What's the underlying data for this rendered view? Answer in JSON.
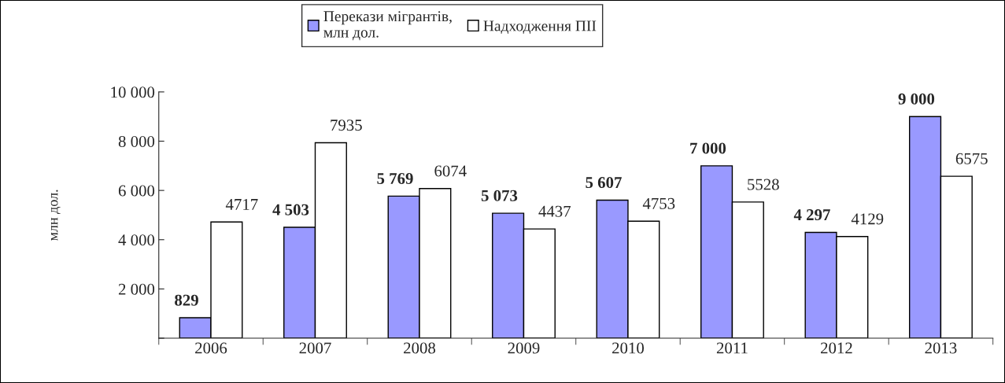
{
  "chart_data": {
    "type": "bar",
    "categories": [
      "2006",
      "2007",
      "2008",
      "2009",
      "2010",
      "2011",
      "2012",
      "2013"
    ],
    "series": [
      {
        "name": "Перекази мігрантів,\nмлн дол.",
        "color": "#9999ff",
        "values": [
          829,
          4503,
          5769,
          5073,
          5607,
          7000,
          4297,
          9000
        ],
        "value_labels": [
          "829",
          "4 503",
          "5 769",
          "5 073",
          "5 607",
          "7 000",
          "4 297",
          "9 000"
        ]
      },
      {
        "name": "Надходження ПІІ",
        "color": "#ffffff",
        "values": [
          4717,
          7935,
          6074,
          4437,
          4753,
          5528,
          4129,
          6575
        ],
        "value_labels": [
          "4717",
          "7935",
          "6074",
          "4437",
          "4753",
          "5528",
          "4129",
          "6575"
        ]
      }
    ],
    "ylabel": "млн дол.",
    "ylim": [
      0,
      10000
    ],
    "yticks": [
      {
        "value": 0,
        "label": null
      },
      {
        "value": 2000,
        "label": "2 000"
      },
      {
        "value": 4000,
        "label": "4 000"
      },
      {
        "value": 6000,
        "label": "6 000"
      },
      {
        "value": 8000,
        "label": "8 000"
      },
      {
        "value": 10000,
        "label": "10 000"
      }
    ],
    "legend": "top",
    "grid": false
  }
}
